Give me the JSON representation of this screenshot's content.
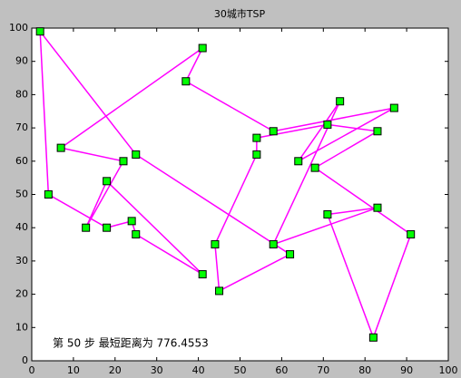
{
  "chart_data": {
    "type": "line",
    "title": "30城市TSP",
    "annotation": "第 50 步  最短距离为 776.4553",
    "x": [
      2,
      4,
      18,
      24,
      25,
      41,
      18,
      13,
      22,
      7,
      41,
      37,
      58,
      87,
      64,
      74,
      58,
      83,
      71,
      82,
      91,
      68,
      83,
      71,
      54,
      54,
      44,
      45,
      62,
      25
    ],
    "series": [
      {
        "color": "#ff00ff",
        "marker_color": "#00ff00",
        "values": [
          99,
          50,
          40,
          42,
          38,
          26,
          54,
          40,
          60,
          64,
          94,
          84,
          69,
          76,
          60,
          78,
          35,
          46,
          44,
          7,
          38,
          58,
          69,
          71,
          67,
          62,
          35,
          21,
          32,
          62
        ]
      }
    ],
    "closed": true,
    "xlim": [
      0,
      100
    ],
    "ylim": [
      0,
      100
    ],
    "xticks": [
      0,
      10,
      20,
      30,
      40,
      50,
      60,
      70,
      80,
      90,
      100
    ],
    "yticks": [
      0,
      10,
      20,
      30,
      40,
      50,
      60,
      70,
      80,
      90,
      100
    ]
  }
}
